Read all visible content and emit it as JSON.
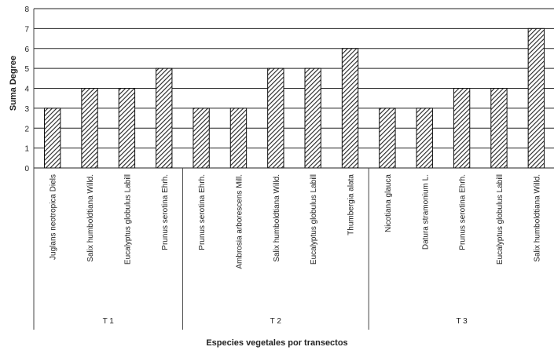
{
  "chart_data": {
    "type": "bar",
    "title": "",
    "ylabel": "Suma Degree",
    "xlabel": "Especies vegetales por transectos",
    "ylim": [
      0,
      8
    ],
    "yticks": [
      0,
      1,
      2,
      3,
      4,
      5,
      6,
      7,
      8
    ],
    "grid": true,
    "bar_fill": "hatched",
    "groups": [
      {
        "label": "T 1",
        "categories": [
          "Juglans neotropica Diels",
          "Salix humboldtiana Willd.",
          "Eucalyptus globulus Labill",
          "Prunus serotina Ehrh."
        ],
        "values": [
          3,
          4,
          4,
          5
        ]
      },
      {
        "label": "T 2",
        "categories": [
          "Prunus serotina Ehrh.",
          "Ambrosia arborescens Mill.",
          "Salix humboldtiana Willd.",
          "Eucalyptus globulus Labill",
          "Thumbergia alata"
        ],
        "values": [
          3,
          3,
          5,
          5,
          6
        ]
      },
      {
        "label": "T 3",
        "categories": [
          "Nicotiana glauca",
          "Datura stramonium L.",
          "Prunus serotina Ehrh.",
          "Eucalyptus globulus Labill",
          "Salix humboldtiana Willd."
        ],
        "values": [
          3,
          3,
          4,
          4,
          7
        ]
      }
    ]
  },
  "colors": {
    "bar_stroke": "#111111",
    "hatch": "#222222",
    "grid": "#222222",
    "axis": "#444444",
    "text": "#222222"
  }
}
